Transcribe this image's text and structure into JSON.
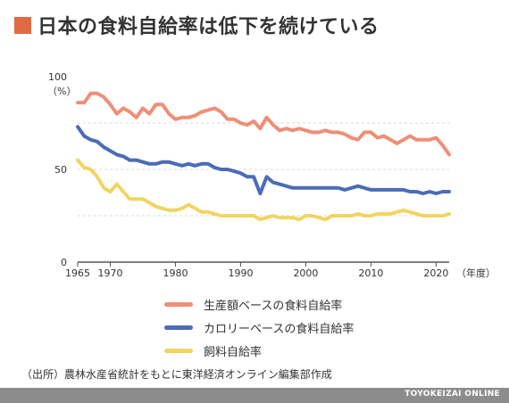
{
  "header": {
    "title": "日本の食料自給率は低下を続けている"
  },
  "chart_data": {
    "type": "line",
    "unit_label": "（%）",
    "x_unit_label": "（年度）",
    "ylim": [
      0,
      100
    ],
    "y_ticks": [
      "0",
      "50",
      "100"
    ],
    "x_ticks": [
      "1965",
      "1970",
      "1980",
      "1990",
      "2000",
      "2010",
      "2020"
    ],
    "grid": true,
    "legend_position": "bottom",
    "x": [
      1965,
      1966,
      1967,
      1968,
      1969,
      1970,
      1971,
      1972,
      1973,
      1974,
      1975,
      1976,
      1977,
      1978,
      1979,
      1980,
      1981,
      1982,
      1983,
      1984,
      1985,
      1986,
      1987,
      1988,
      1989,
      1990,
      1991,
      1992,
      1993,
      1994,
      1995,
      1996,
      1997,
      1998,
      1999,
      2000,
      2001,
      2002,
      2003,
      2004,
      2005,
      2006,
      2007,
      2008,
      2009,
      2010,
      2011,
      2012,
      2013,
      2014,
      2015,
      2016,
      2017,
      2018,
      2019,
      2020,
      2021,
      2022
    ],
    "series": [
      {
        "name": "生産額ベースの食料自給率",
        "color": "#ee8f77",
        "values": [
          86,
          86,
          91,
          91,
          89,
          85,
          80,
          83,
          81,
          78,
          83,
          80,
          85,
          85,
          80,
          77,
          78,
          78,
          79,
          81,
          82,
          83,
          81,
          77,
          77,
          75,
          74,
          76,
          72,
          78,
          74,
          71,
          72,
          71,
          72,
          71,
          70,
          70,
          71,
          70,
          70,
          69,
          67,
          66,
          70,
          70,
          67,
          68,
          66,
          64,
          66,
          68,
          66,
          66,
          66,
          67,
          63,
          58
        ],
        "style": "line"
      },
      {
        "name": "カロリーベースの食料自給率",
        "color": "#4b6cb6",
        "values": [
          73,
          68,
          66,
          65,
          62,
          60,
          58,
          57,
          55,
          55,
          54,
          53,
          53,
          54,
          54,
          53,
          52,
          53,
          52,
          53,
          53,
          51,
          50,
          50,
          49,
          48,
          46,
          46,
          37,
          46,
          43,
          42,
          41,
          40,
          40,
          40,
          40,
          40,
          40,
          40,
          40,
          39,
          40,
          41,
          40,
          39,
          39,
          39,
          39,
          39,
          39,
          38,
          38,
          37,
          38,
          37,
          38,
          38
        ],
        "style": "line"
      },
      {
        "name": "飼料自給率",
        "color": "#f0d562",
        "values": [
          55,
          51,
          50,
          46,
          40,
          38,
          42,
          38,
          34,
          34,
          34,
          32,
          30,
          29,
          28,
          28,
          29,
          31,
          29,
          27,
          27,
          26,
          25,
          25,
          25,
          25,
          25,
          25,
          23,
          24,
          25,
          24,
          24,
          24,
          23,
          25,
          25,
          24,
          23,
          25,
          25,
          25,
          25,
          26,
          25,
          25,
          26,
          26,
          26,
          27,
          28,
          27,
          26,
          25,
          25,
          25,
          25,
          26
        ],
        "style": "line"
      }
    ]
  },
  "source": "（出所）農林水産省統計をもとに東洋経済オンライン編集部作成",
  "footer": {
    "brand": "TOYOKEIZAI ONLINE"
  }
}
